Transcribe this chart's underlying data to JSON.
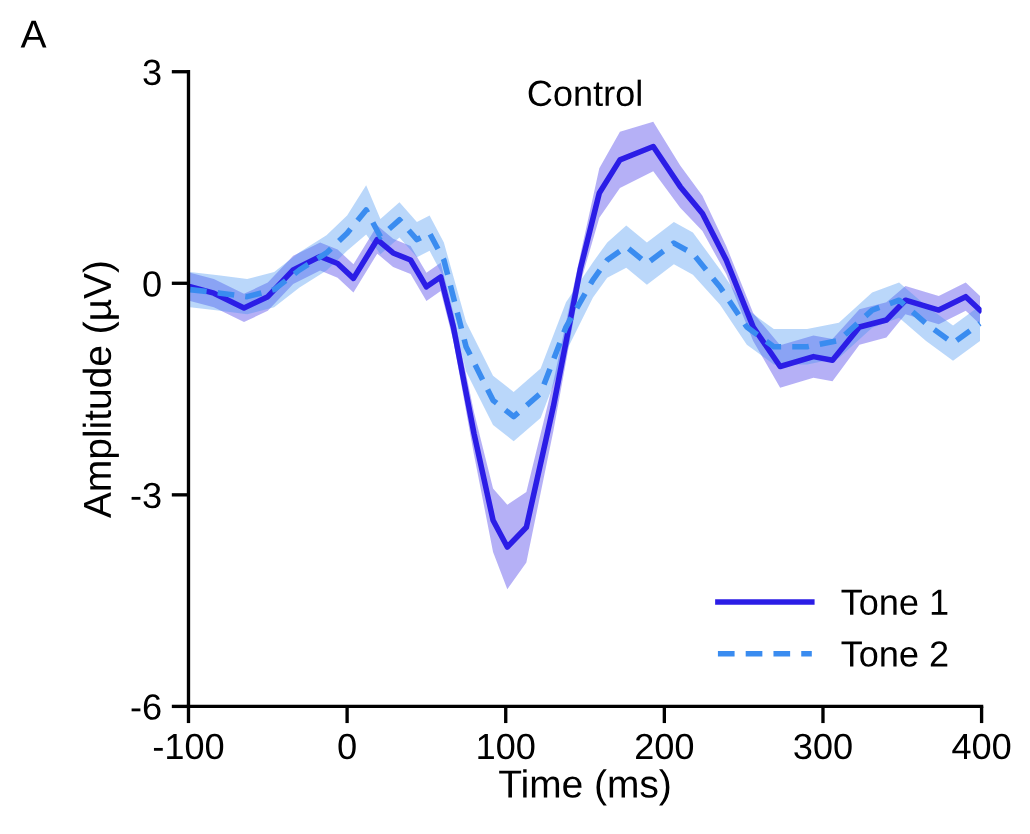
{
  "chart_data": {
    "type": "line",
    "title": "Control",
    "xlabel": "Time (ms)",
    "ylabel": "Amplitude (µV)",
    "annotations": [
      "A"
    ],
    "xlim": [
      -100,
      400
    ],
    "xticks": [
      -100,
      0,
      100,
      200,
      300,
      400
    ],
    "ylim": [
      -6,
      3
    ],
    "yticks": [
      -6,
      -3,
      0,
      3
    ],
    "grid": false,
    "legend": "bottom right",
    "series": [
      {
        "name": "Tone 1",
        "color": "#2b1de6",
        "line_style": "solid",
        "x": [
          -99,
          -84,
          -65,
          -50,
          -34,
          -17,
          -6,
          4,
          19,
          29,
          40,
          50,
          59,
          67,
          80,
          92,
          101,
          113,
          130,
          147,
          159,
          172,
          193,
          210,
          224,
          239,
          256,
          273,
          294,
          306,
          323,
          340,
          352,
          373,
          390,
          399
        ],
        "values": [
          -0.05,
          -0.14,
          -0.35,
          -0.19,
          0.19,
          0.38,
          0.28,
          0.07,
          0.62,
          0.43,
          0.33,
          -0.05,
          0.09,
          -0.62,
          -2.13,
          -3.36,
          -3.74,
          -3.46,
          -1.75,
          0.2,
          1.28,
          1.75,
          1.94,
          1.37,
          0.99,
          0.33,
          -0.62,
          -1.18,
          -1.04,
          -1.09,
          -0.62,
          -0.52,
          -0.24,
          -0.38,
          -0.19,
          -0.38
        ],
        "lower": [
          -0.25,
          -0.34,
          -0.55,
          -0.39,
          -0.01,
          0.18,
          0.08,
          -0.13,
          0.42,
          0.23,
          0.13,
          -0.25,
          -0.11,
          -0.82,
          -2.43,
          -3.81,
          -4.34,
          -3.96,
          -2.1,
          0,
          0.93,
          1.35,
          1.59,
          1.07,
          0.74,
          0.13,
          -0.82,
          -1.48,
          -1.34,
          -1.39,
          -0.87,
          -0.77,
          -0.44,
          -0.58,
          -0.39,
          -0.58
        ],
        "upper": [
          0.15,
          0.06,
          -0.15,
          0.01,
          0.39,
          0.58,
          0.48,
          0.27,
          0.82,
          0.63,
          0.53,
          0.15,
          0.29,
          -0.42,
          -1.83,
          -2.91,
          -3.14,
          -2.96,
          -1.4,
          0.4,
          1.63,
          2.15,
          2.29,
          1.67,
          1.24,
          0.53,
          -0.42,
          -0.88,
          -0.74,
          -0.79,
          -0.37,
          -0.27,
          -0.04,
          -0.18,
          0.01,
          -0.18
        ]
      },
      {
        "name": "Tone 2",
        "color": "#3a8cf0",
        "line_style": "dashed",
        "x": [
          -99,
          -80,
          -63,
          -46,
          -30,
          -13,
          0,
          12,
          21,
          33,
          44,
          52,
          61,
          75,
          92,
          105,
          122,
          138,
          155,
          164,
          176,
          189,
          206,
          218,
          235,
          252,
          269,
          290,
          310,
          331,
          348,
          365,
          382,
          399
        ],
        "values": [
          -0.09,
          -0.14,
          -0.19,
          -0.09,
          0.19,
          0.43,
          0.71,
          1.04,
          0.66,
          0.9,
          0.62,
          0.71,
          0.33,
          -0.9,
          -1.66,
          -1.89,
          -1.56,
          -0.62,
          0.05,
          0.33,
          0.52,
          0.28,
          0.57,
          0.42,
          -0.05,
          -0.62,
          -0.9,
          -0.9,
          -0.81,
          -0.38,
          -0.24,
          -0.57,
          -0.85,
          -0.57
        ],
        "lower": [
          -0.34,
          -0.39,
          -0.44,
          -0.34,
          -0.06,
          0.18,
          0.46,
          0.69,
          0.41,
          0.65,
          0.37,
          0.46,
          0.08,
          -1.25,
          -2.01,
          -2.24,
          -1.91,
          -0.97,
          -0.2,
          0.08,
          0.22,
          -0.02,
          0.27,
          0.12,
          -0.3,
          -0.87,
          -1.15,
          -1.15,
          -1.06,
          -0.63,
          -0.49,
          -0.82,
          -1.1,
          -0.82
        ],
        "upper": [
          0.16,
          0.11,
          0.06,
          0.16,
          0.44,
          0.68,
          0.96,
          1.39,
          0.91,
          1.15,
          0.87,
          0.96,
          0.58,
          -0.55,
          -1.31,
          -1.54,
          -1.21,
          -0.27,
          0.3,
          0.58,
          0.82,
          0.58,
          0.87,
          0.72,
          0.2,
          -0.37,
          -0.65,
          -0.65,
          -0.56,
          -0.13,
          0.01,
          -0.32,
          -0.6,
          -0.32
        ]
      }
    ]
  }
}
